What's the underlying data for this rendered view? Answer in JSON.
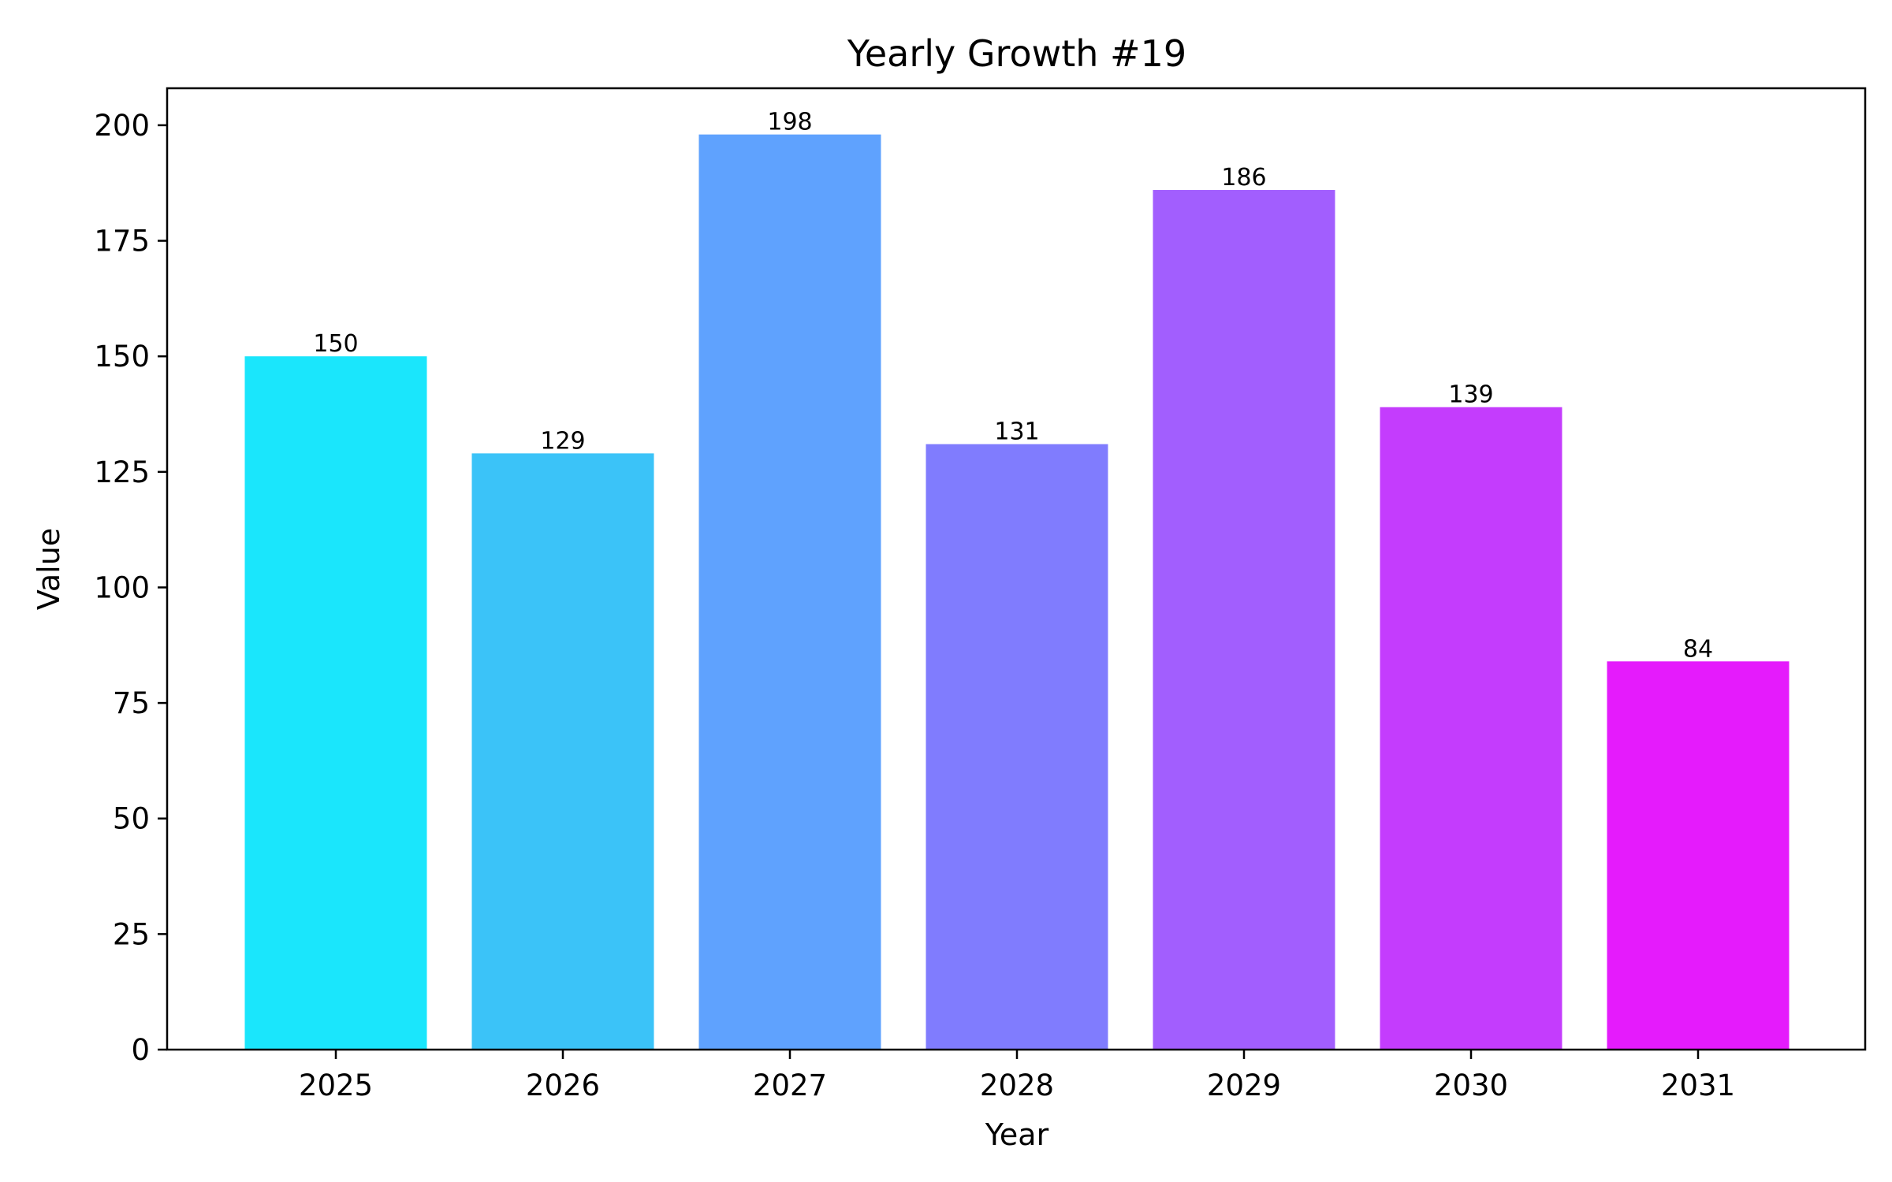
{
  "chart_data": {
    "type": "bar",
    "title": "Yearly Growth #19",
    "xlabel": "Year",
    "ylabel": "Value",
    "categories": [
      "2025",
      "2026",
      "2027",
      "2028",
      "2029",
      "2030",
      "2031"
    ],
    "values": [
      150,
      129,
      198,
      131,
      186,
      139,
      84
    ],
    "data_labels": [
      "150",
      "129",
      "198",
      "131",
      "186",
      "139",
      "84"
    ],
    "bar_colors": [
      "#1ae6fc",
      "#3bc3f8",
      "#5fa2fe",
      "#807cfe",
      "#a25efe",
      "#c43cfd",
      "#e51bfc"
    ],
    "yticks": [
      0,
      25,
      50,
      75,
      100,
      125,
      150,
      175,
      200
    ],
    "ylim": [
      0,
      208
    ],
    "grid": false,
    "legend": false
  }
}
